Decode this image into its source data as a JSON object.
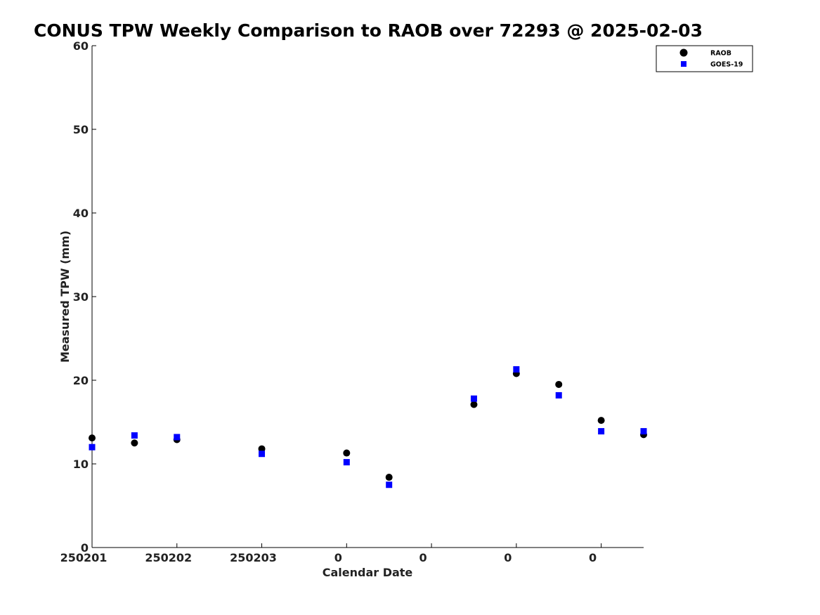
{
  "chart_data": {
    "type": "scatter",
    "title": "CONUS TPW Weekly Comparison to RAOB over 72293 @ 2025-02-03",
    "xlabel": "Calendar Date",
    "ylabel": "Measured TPW (mm)",
    "xlim": [
      0,
      13
    ],
    "ylim": [
      0,
      60
    ],
    "yticks": [
      0,
      10,
      20,
      30,
      40,
      50,
      60
    ],
    "xticks": [
      {
        "x": 0,
        "label": "250201"
      },
      {
        "x": 2,
        "label": "250202"
      },
      {
        "x": 4,
        "label": "250203"
      },
      {
        "x": 6,
        "label": "0"
      },
      {
        "x": 8,
        "label": "0"
      },
      {
        "x": 10,
        "label": "0"
      },
      {
        "x": 12,
        "label": "0"
      }
    ],
    "legend_position": "top-right",
    "series": [
      {
        "name": "RAOB",
        "marker": "circle",
        "color": "#000000",
        "x": [
          0,
          1,
          2,
          4,
          6,
          7,
          9,
          10,
          11,
          12,
          13
        ],
        "y": [
          13.1,
          12.5,
          12.9,
          11.8,
          11.3,
          8.4,
          17.1,
          20.8,
          19.5,
          15.2,
          13.5
        ]
      },
      {
        "name": "GOES-19",
        "marker": "square",
        "color": "#0000ff",
        "x": [
          0,
          1,
          2,
          4,
          6,
          7,
          9,
          10,
          11,
          12,
          13
        ],
        "y": [
          12.0,
          13.4,
          13.2,
          11.2,
          10.2,
          7.5,
          17.8,
          21.3,
          18.2,
          13.9,
          13.9
        ]
      }
    ]
  }
}
